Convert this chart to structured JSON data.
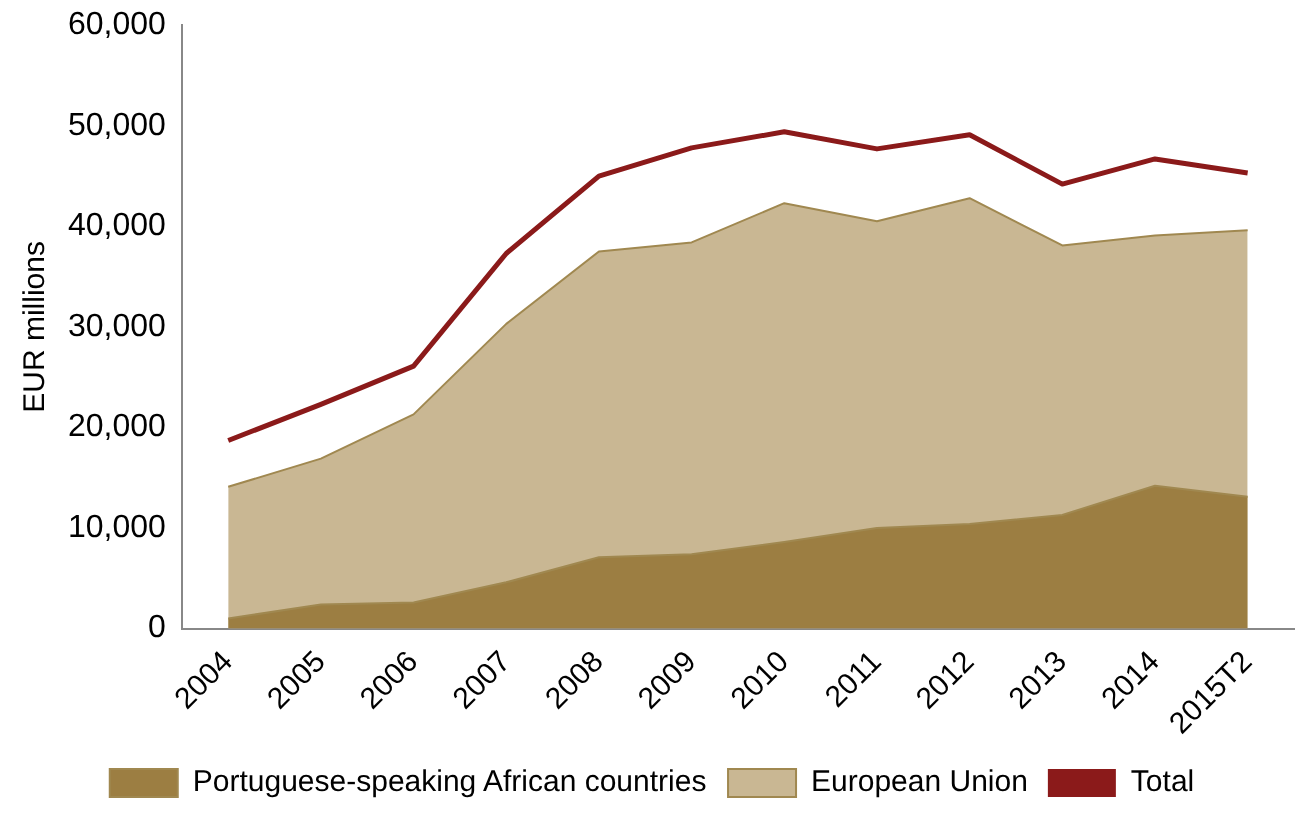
{
  "chart_data": {
    "type": "area",
    "ylabel": "EUR millions",
    "categories": [
      "2004",
      "2005",
      "2006",
      "2007",
      "2008",
      "2009",
      "2010",
      "2011",
      "2012",
      "2013",
      "2014",
      "2015T2"
    ],
    "series": [
      {
        "name": "Portuguese-speaking African countries",
        "color": "#9c7e42",
        "values": [
          1000,
          2400,
          2600,
          4600,
          7100,
          7400,
          8600,
          10000,
          10400,
          11300,
          14200,
          13100
        ]
      },
      {
        "name": "European Union",
        "color": "#c9b793",
        "values": [
          14100,
          16900,
          21300,
          30300,
          37500,
          38400,
          42300,
          40500,
          42800,
          38100,
          39100,
          39600
        ]
      },
      {
        "name": "Total",
        "type": "line",
        "color": "#8b1a1a",
        "values": [
          18700,
          22300,
          26100,
          37300,
          45000,
          47800,
          49400,
          47700,
          49100,
          44200,
          46700,
          45300
        ]
      }
    ],
    "ylim": [
      0,
      60000
    ],
    "yticks": [
      0,
      {
        "value": 10000,
        "label": "10,000"
      },
      {
        "value": 20000,
        "label": "20,000"
      },
      {
        "value": 30000,
        "label": "30,000"
      },
      {
        "value": 40000,
        "label": "40,000"
      },
      {
        "value": 50000,
        "label": "50,000"
      },
      {
        "value": 60000,
        "label": "60,000"
      }
    ],
    "grid": false,
    "legend": "bottom"
  }
}
